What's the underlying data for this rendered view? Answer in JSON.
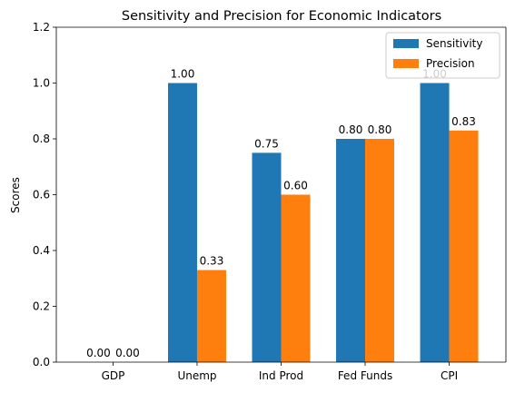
{
  "chart_data": {
    "type": "bar",
    "title": "Sensitivity and Precision for Economic Indicators",
    "xlabel": "",
    "ylabel": "Scores",
    "categories": [
      "GDP",
      "Unemp",
      "Ind Prod",
      "Fed Funds",
      "CPI"
    ],
    "series": [
      {
        "name": "Sensitivity",
        "values": [
          0.0,
          1.0,
          0.75,
          0.8,
          1.0
        ],
        "labels": [
          "0.00",
          "1.00",
          "0.75",
          "0.80",
          "1.00"
        ],
        "color": "#1f77b4"
      },
      {
        "name": "Precision",
        "values": [
          0.0,
          0.33,
          0.6,
          0.8,
          0.83
        ],
        "labels": [
          "0.00",
          "0.33",
          "0.60",
          "0.80",
          "0.83"
        ],
        "color": "#ff7f0e"
      }
    ],
    "ylim": [
      0,
      1.2
    ],
    "yticks": [
      "0.0",
      "0.2",
      "0.4",
      "0.6",
      "0.8",
      "1.0",
      "1.2"
    ],
    "grid": false,
    "legend_position": "top-right"
  }
}
